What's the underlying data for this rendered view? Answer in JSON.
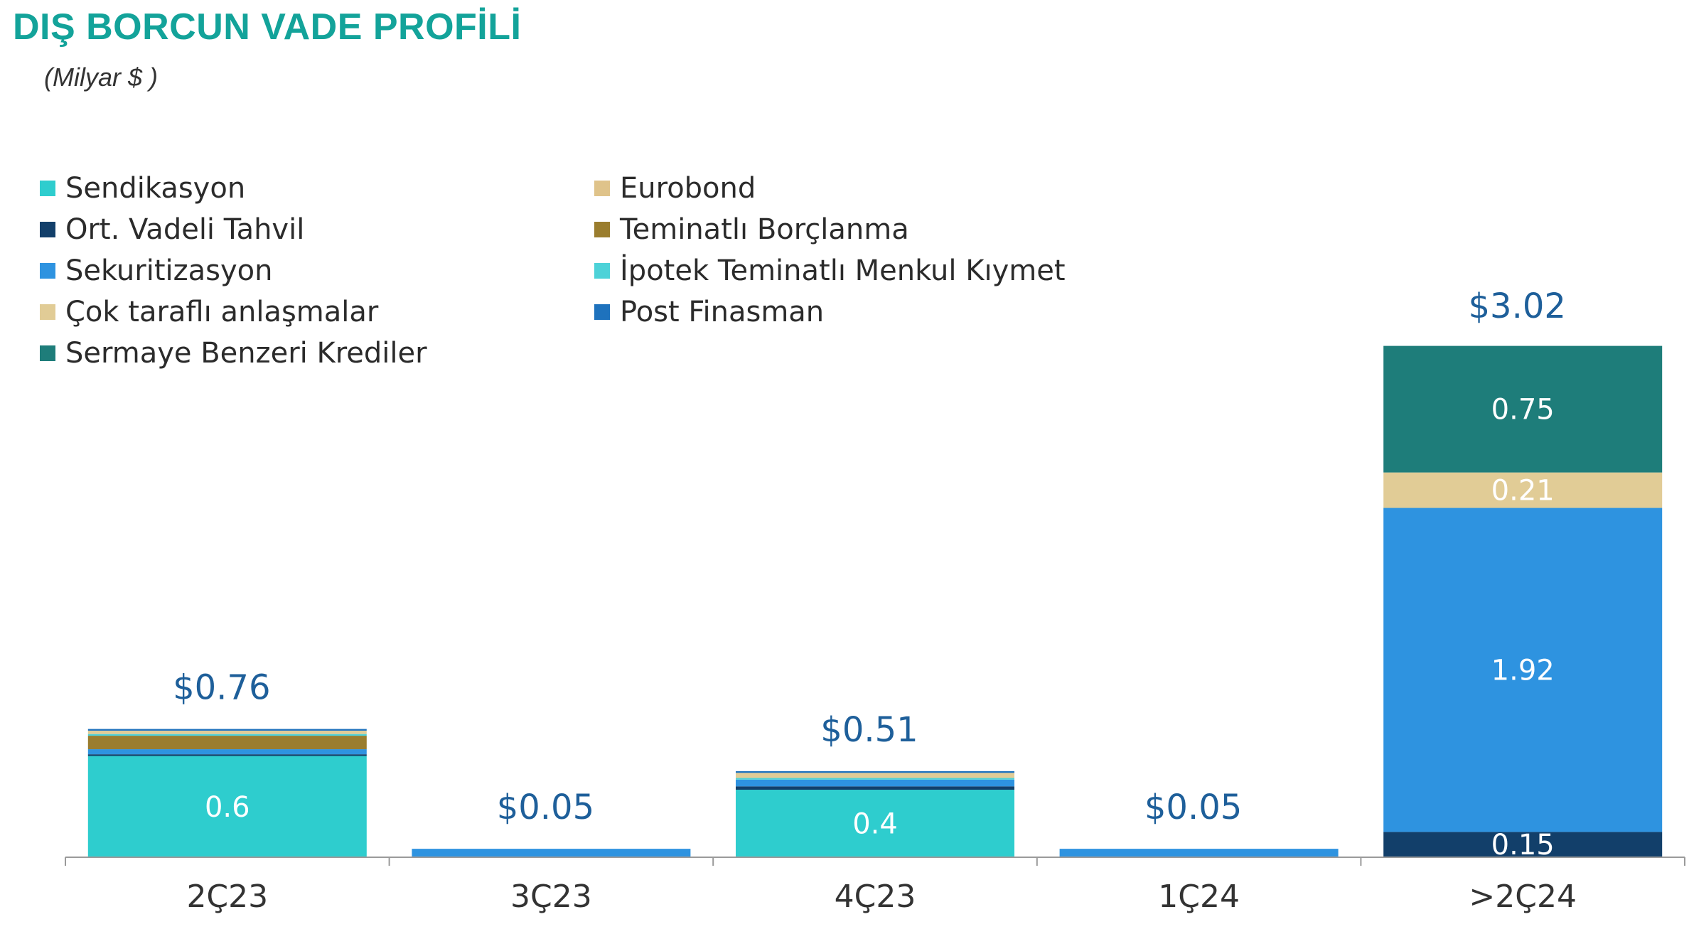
{
  "title": "DIŞ BORCUN VADE PROFİLİ",
  "subtitle": "(Milyar $ )",
  "chart_data": {
    "type": "bar",
    "stacked": true,
    "categories": [
      "2Ç23",
      "3Ç23",
      "4Ç23",
      "1Ç24",
      ">2Ç24"
    ],
    "totals": [
      "$0.76",
      "$0.05",
      "$0.51",
      "$0.05",
      "$3.02"
    ],
    "total_values": [
      0.76,
      0.05,
      0.51,
      0.05,
      3.02
    ],
    "ylim": [
      0,
      3.1
    ],
    "grid": false,
    "legend_position": "top-left",
    "series": [
      {
        "name": "Sendikasyon",
        "color": "#2ecdce",
        "values": [
          0.6,
          0,
          0.4,
          0,
          0
        ]
      },
      {
        "name": "Eurobond",
        "color": "#dfc38a",
        "values": [
          0,
          0,
          0,
          0,
          0
        ]
      },
      {
        "name": "Ort. Vadeli Tahvil",
        "color": "#123f6a",
        "values": [
          0.01,
          0,
          0.02,
          0,
          0.15
        ]
      },
      {
        "name": "Teminatlı Borçlanma",
        "color": "#9a7d2e",
        "values": [
          0.08,
          0,
          0,
          0,
          0
        ]
      },
      {
        "name": "Sekuritizasyon",
        "color": "#2e93e0",
        "values": [
          0.03,
          0.05,
          0.04,
          0.05,
          1.92
        ]
      },
      {
        "name": "İpotek Teminatlı Menkul Kıymet",
        "color": "#4dd2d8",
        "values": [
          0.01,
          0,
          0.01,
          0,
          0
        ]
      },
      {
        "name": "Çok taraflı anlaşmalar",
        "color": "#e1cc96",
        "values": [
          0.02,
          0,
          0.03,
          0,
          0.21
        ]
      },
      {
        "name": "Post Finasman",
        "color": "#1e72bd",
        "values": [
          0.01,
          0,
          0.01,
          0,
          0
        ]
      },
      {
        "name": "Sermaye Benzeri Krediler",
        "color": "#1e7d7a",
        "values": [
          0,
          0,
          0,
          0,
          0.75
        ]
      }
    ],
    "stack_order": [
      0,
      2,
      4,
      3,
      1,
      5,
      6,
      7,
      8
    ],
    "data_labels": [
      {
        "category": 0,
        "series": 0,
        "text": "0.6"
      },
      {
        "category": 2,
        "series": 0,
        "text": "0.4"
      },
      {
        "category": 4,
        "series": 2,
        "text": "0.15"
      },
      {
        "category": 4,
        "series": 4,
        "text": "1.92"
      },
      {
        "category": 4,
        "series": 6,
        "text": "0.21"
      },
      {
        "category": 4,
        "series": 8,
        "text": "0.75"
      }
    ],
    "colors": {
      "title": "#13a39a",
      "total_label": "#1e5f9a",
      "axis": "#9a9a9a",
      "tick_label": "#333333",
      "data_label": "#ffffff"
    }
  }
}
